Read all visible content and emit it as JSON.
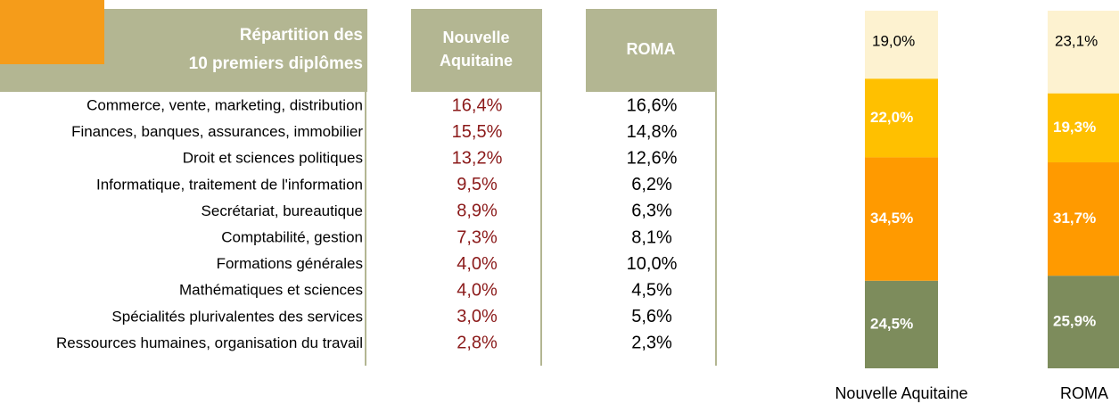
{
  "table": {
    "header": [
      [
        "Répartition des",
        "10 premiers diplômes"
      ],
      [
        "Nouvelle",
        "Aquitaine"
      ],
      [
        "ROMA"
      ]
    ],
    "rows": [
      [
        "Commerce, vente, marketing, distribution",
        "16,4%",
        "16,6%"
      ],
      [
        "Finances, banques, assurances, immobilier",
        "15,5%",
        "14,8%"
      ],
      [
        "Droit et sciences politiques",
        "13,2%",
        "12,6%"
      ],
      [
        "Informatique, traitement de l'information",
        "9,5%",
        "6,2%"
      ],
      [
        "Secrétariat, bureautique",
        "8,9%",
        "6,3%"
      ],
      [
        "Comptabilité, gestion",
        "7,3%",
        "8,1%"
      ],
      [
        "Formations générales",
        "4,0%",
        "10,0%"
      ],
      [
        "Mathématiques et sciences",
        "4,0%",
        "4,5%"
      ],
      [
        "Spécialités plurivalentes des services",
        "3,0%",
        "5,6%"
      ],
      [
        "Ressources humaines, organisation du travail",
        "2,8%",
        "2,3%"
      ]
    ]
  },
  "chart_data": {
    "type": "stacked_bar",
    "categories": [
      "Nouvelle Aquitaine",
      "ROMA"
    ],
    "series": [
      {
        "color": "#7d8c5c",
        "label_color": "#ffffff",
        "values": [
          24.5,
          25.9
        ],
        "value_labels": [
          "24,5%",
          "25,9%"
        ]
      },
      {
        "color": "#ff9a00",
        "label_color": "#ffffff",
        "values": [
          34.5,
          31.7
        ],
        "value_labels": [
          "34,5%",
          "31,7%"
        ]
      },
      {
        "color": "#ffc000",
        "label_color": "#ffffff",
        "values": [
          22.0,
          19.3
        ],
        "value_labels": [
          "22,0%",
          "19,3%"
        ]
      },
      {
        "color": "#fdf2d0",
        "label_color": "#000000",
        "values": [
          19.0,
          23.1
        ],
        "value_labels": [
          "19,0%",
          "23,1%"
        ]
      }
    ]
  }
}
